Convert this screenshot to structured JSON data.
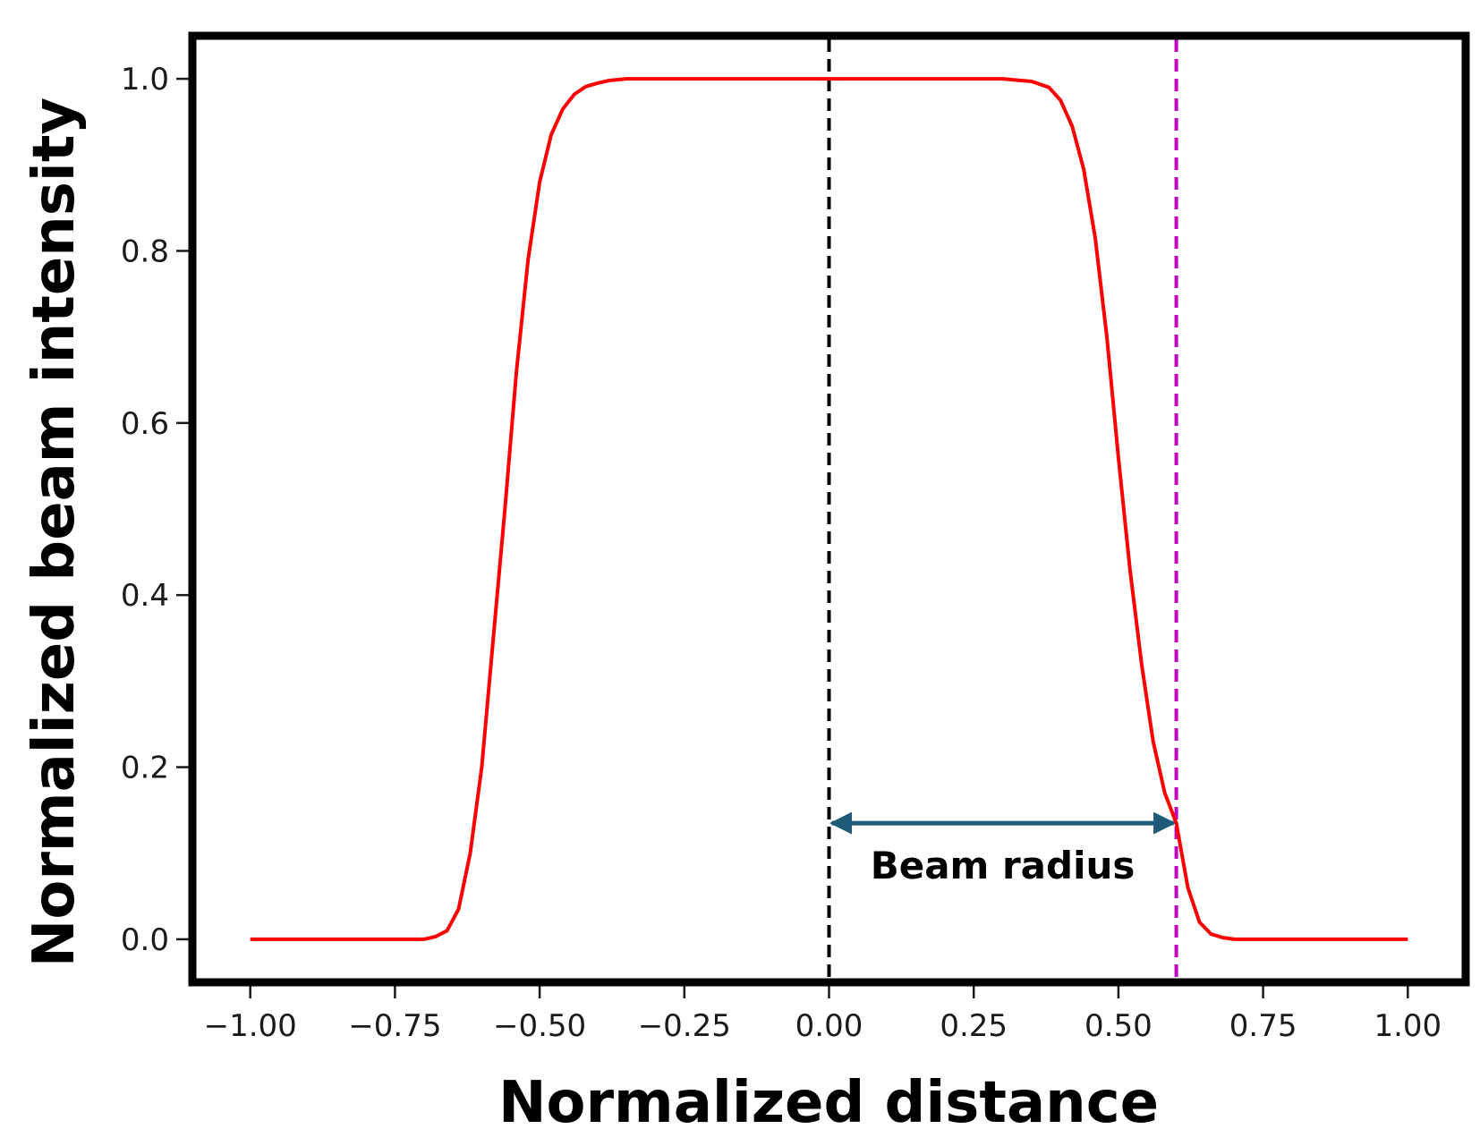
{
  "chart_data": {
    "type": "line",
    "xlabel": "Normalized distance",
    "ylabel": "Normalized beam intensity",
    "xlim": [
      -1.1,
      1.1
    ],
    "ylim": [
      -0.05,
      1.05
    ],
    "x_ticks": [
      -1.0,
      -0.75,
      -0.5,
      -0.25,
      0.0,
      0.25,
      0.5,
      0.75,
      1.0
    ],
    "x_tick_labels": [
      "−1.00",
      "−0.75",
      "−0.50",
      "−0.25",
      "0.00",
      "0.25",
      "0.50",
      "0.75",
      "1.00"
    ],
    "y_ticks": [
      0.0,
      0.2,
      0.4,
      0.6,
      0.8,
      1.0
    ],
    "y_tick_labels": [
      "0.0",
      "0.2",
      "0.4",
      "0.6",
      "0.8",
      "1.0"
    ],
    "grid": false,
    "series": [
      {
        "color": "#ff0000",
        "style": "solid",
        "x": [
          -1.0,
          -0.9,
          -0.8,
          -0.7,
          -0.68,
          -0.66,
          -0.64,
          -0.62,
          -0.6,
          -0.58,
          -0.56,
          -0.54,
          -0.52,
          -0.5,
          -0.48,
          -0.46,
          -0.44,
          -0.42,
          -0.4,
          -0.38,
          -0.35,
          -0.3,
          -0.2,
          -0.1,
          0.0,
          0.1,
          0.2,
          0.3,
          0.35,
          0.38,
          0.4,
          0.42,
          0.44,
          0.46,
          0.48,
          0.5,
          0.52,
          0.54,
          0.56,
          0.58,
          0.6,
          0.62,
          0.64,
          0.66,
          0.68,
          0.7,
          0.8,
          0.9,
          1.0
        ],
        "y": [
          0.0,
          0.0,
          0.0,
          0.0,
          0.003,
          0.01,
          0.035,
          0.1,
          0.2,
          0.35,
          0.5,
          0.66,
          0.79,
          0.88,
          0.935,
          0.965,
          0.982,
          0.991,
          0.995,
          0.998,
          1.0,
          1.0,
          1.0,
          1.0,
          1.0,
          1.0,
          1.0,
          1.0,
          0.997,
          0.99,
          0.975,
          0.945,
          0.895,
          0.815,
          0.7,
          0.56,
          0.43,
          0.32,
          0.23,
          0.17,
          0.135,
          0.06,
          0.02,
          0.006,
          0.002,
          0.0,
          0.0,
          0.0,
          0.0
        ]
      }
    ],
    "vlines": [
      {
        "x": 0.0,
        "color": "#000000",
        "style": "dashed"
      },
      {
        "x": 0.6,
        "color": "#c000c0",
        "style": "dashed"
      }
    ],
    "annotation": {
      "text": "Beam radius",
      "arrow_x_start": 0.0,
      "arrow_x_end": 0.6,
      "arrow_y": 0.135,
      "arrow_color": "#1f5a78"
    }
  }
}
